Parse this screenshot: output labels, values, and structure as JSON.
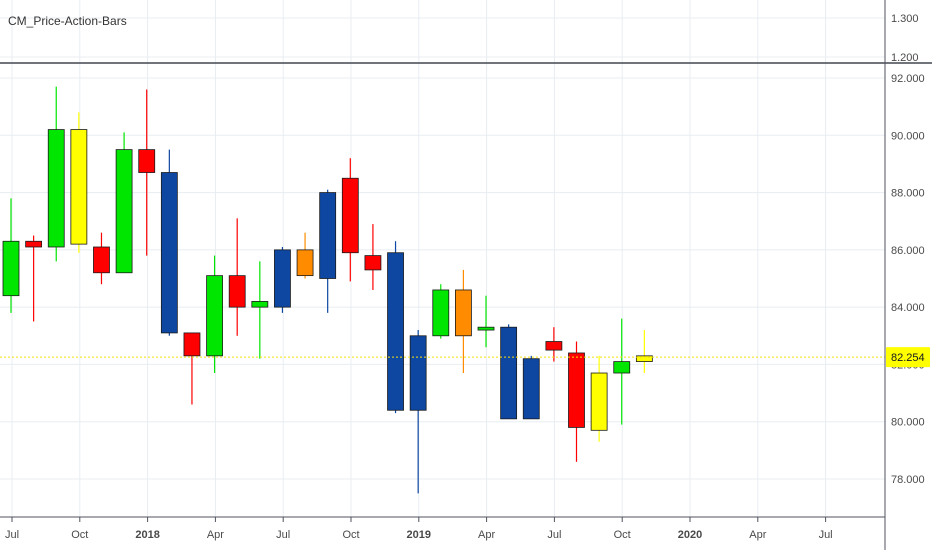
{
  "indicator": {
    "name": "CM_Price-Action-Bars"
  },
  "colors": {
    "green": "#00e600",
    "red": "#ff0000",
    "blue": "#0d47a1",
    "yellow": "#ffff00",
    "orange": "#ff8c00",
    "last_price_line": "#f5e10a",
    "last_price_badge": "#ffff00"
  },
  "upper_pane": {
    "ticks": [
      "1.300",
      "1.200"
    ]
  },
  "chart_data": {
    "type": "candlestick",
    "interval": "monthly",
    "x_ticks": [
      {
        "label": "Jul",
        "bold": false
      },
      {
        "label": "Oct",
        "bold": false
      },
      {
        "label": "2018",
        "bold": true
      },
      {
        "label": "Apr",
        "bold": false
      },
      {
        "label": "Jul",
        "bold": false
      },
      {
        "label": "Oct",
        "bold": false
      },
      {
        "label": "2019",
        "bold": true
      },
      {
        "label": "Apr",
        "bold": false
      },
      {
        "label": "Jul",
        "bold": false
      },
      {
        "label": "Oct",
        "bold": false
      },
      {
        "label": "2020",
        "bold": true
      },
      {
        "label": "Apr",
        "bold": false
      },
      {
        "label": "Jul",
        "bold": false
      }
    ],
    "y_ticks": [
      "92.000",
      "90.000",
      "88.000",
      "86.000",
      "84.000",
      "82.000",
      "80.000",
      "78.000"
    ],
    "ylim": [
      76.5,
      92.2
    ],
    "last_price": "82.254",
    "candles": [
      {
        "open": 84.4,
        "high": 87.8,
        "low": 83.8,
        "close": 86.3,
        "color": "green"
      },
      {
        "open": 86.3,
        "high": 86.5,
        "low": 83.5,
        "close": 86.1,
        "color": "red"
      },
      {
        "open": 86.1,
        "high": 91.7,
        "low": 85.6,
        "close": 90.2,
        "color": "green"
      },
      {
        "open": 90.2,
        "high": 90.8,
        "low": 85.9,
        "close": 86.2,
        "color": "yellow"
      },
      {
        "open": 86.1,
        "high": 86.6,
        "low": 84.8,
        "close": 85.2,
        "color": "red"
      },
      {
        "open": 85.2,
        "high": 90.1,
        "low": 85.2,
        "close": 89.5,
        "color": "green"
      },
      {
        "open": 89.5,
        "high": 91.6,
        "low": 85.8,
        "close": 88.7,
        "color": "red"
      },
      {
        "open": 88.7,
        "high": 89.5,
        "low": 83.0,
        "close": 83.1,
        "color": "blue"
      },
      {
        "open": 83.1,
        "high": 83.1,
        "low": 80.6,
        "close": 82.3,
        "color": "red"
      },
      {
        "open": 82.3,
        "high": 85.8,
        "low": 81.7,
        "close": 85.1,
        "color": "green"
      },
      {
        "open": 85.1,
        "high": 87.1,
        "low": 83.0,
        "close": 84.0,
        "color": "red"
      },
      {
        "open": 84.0,
        "high": 85.6,
        "low": 82.2,
        "close": 84.2,
        "color": "green"
      },
      {
        "open": 84.0,
        "high": 86.1,
        "low": 83.8,
        "close": 86.0,
        "color": "blue"
      },
      {
        "open": 86.0,
        "high": 86.6,
        "low": 85.0,
        "close": 85.1,
        "color": "orange"
      },
      {
        "open": 85.0,
        "high": 88.1,
        "low": 83.8,
        "close": 88.0,
        "color": "blue"
      },
      {
        "open": 88.5,
        "high": 89.2,
        "low": 84.9,
        "close": 85.9,
        "color": "red"
      },
      {
        "open": 85.8,
        "high": 86.9,
        "low": 84.6,
        "close": 85.3,
        "color": "red"
      },
      {
        "open": 85.9,
        "high": 86.3,
        "low": 80.3,
        "close": 80.4,
        "color": "blue"
      },
      {
        "open": 80.4,
        "high": 83.2,
        "low": 77.5,
        "close": 83.0,
        "color": "blue"
      },
      {
        "open": 83.0,
        "high": 84.8,
        "low": 82.9,
        "close": 84.6,
        "color": "green"
      },
      {
        "open": 84.6,
        "high": 85.3,
        "low": 81.7,
        "close": 83.0,
        "color": "orange"
      },
      {
        "open": 83.2,
        "high": 84.4,
        "low": 82.6,
        "close": 83.3,
        "color": "green"
      },
      {
        "open": 83.3,
        "high": 83.4,
        "low": 80.1,
        "close": 80.1,
        "color": "blue"
      },
      {
        "open": 82.2,
        "high": 82.3,
        "low": 80.1,
        "close": 80.1,
        "color": "blue"
      },
      {
        "open": 82.8,
        "high": 83.3,
        "low": 82.1,
        "close": 82.5,
        "color": "red"
      },
      {
        "open": 82.4,
        "high": 82.8,
        "low": 78.6,
        "close": 79.8,
        "color": "red"
      },
      {
        "open": 79.7,
        "high": 82.3,
        "low": 79.3,
        "close": 81.7,
        "color": "yellow"
      },
      {
        "open": 81.7,
        "high": 83.6,
        "low": 79.9,
        "close": 82.1,
        "color": "green"
      },
      {
        "open": 82.1,
        "high": 83.2,
        "low": 81.7,
        "close": 82.3,
        "color": "yellow"
      }
    ]
  }
}
